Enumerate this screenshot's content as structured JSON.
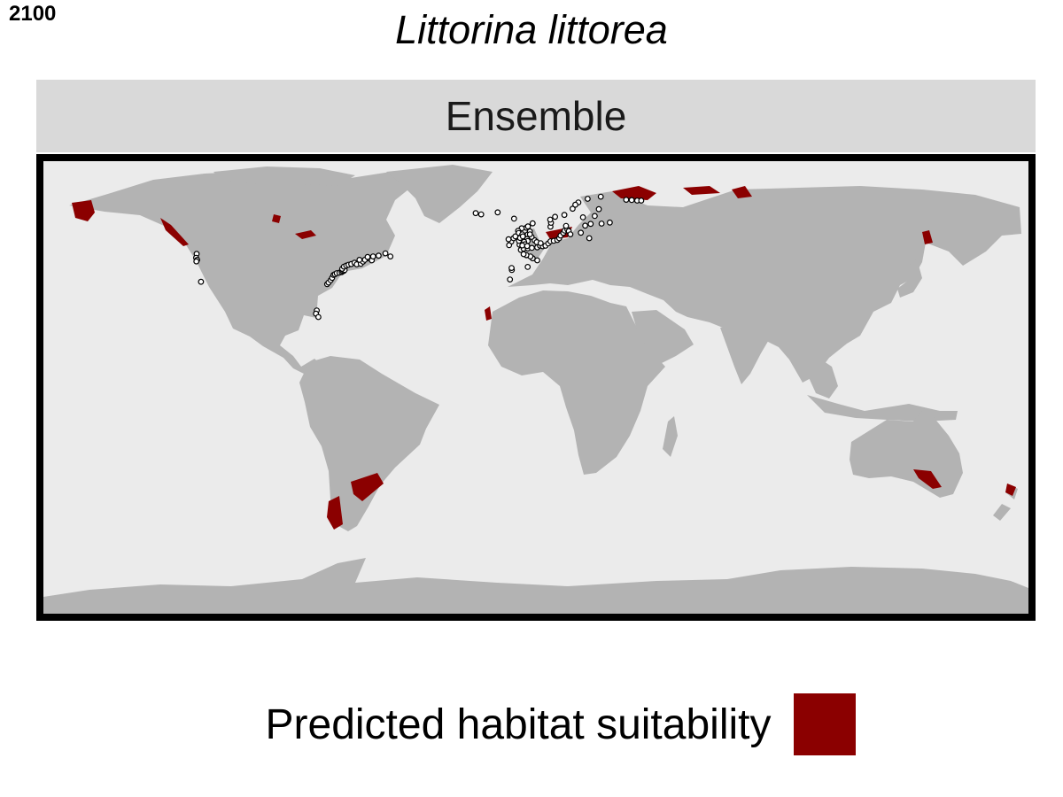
{
  "year_label": "2100",
  "title": "Littorina littorea",
  "panel_label": "Ensemble",
  "legend": {
    "label": "Predicted habitat suitability",
    "color": "#8b0000"
  },
  "colors": {
    "ocean": "#ebebeb",
    "land": "#b3b3b3",
    "suitability": "#8b0000",
    "frame": "#000000",
    "occurrence_fill": "#ffffff",
    "occurrence_stroke": "#000000"
  },
  "occurrences": [
    [
      -124.0,
      48.5
    ],
    [
      -124.2,
      47.0
    ],
    [
      -123.8,
      46.2
    ],
    [
      -124.1,
      45.6
    ],
    [
      -122.4,
      37.8
    ],
    [
      -80.1,
      26.8
    ],
    [
      -80.4,
      25.6
    ],
    [
      -79.5,
      24.3
    ],
    [
      -76.3,
      36.9
    ],
    [
      -75.8,
      37.5
    ],
    [
      -75.0,
      38.4
    ],
    [
      -74.5,
      39.3
    ],
    [
      -74.0,
      40.4
    ],
    [
      -73.5,
      40.7
    ],
    [
      -72.8,
      41.1
    ],
    [
      -71.8,
      41.3
    ],
    [
      -71.0,
      41.5
    ],
    [
      -70.6,
      41.8
    ],
    [
      -70.2,
      42.0
    ],
    [
      -69.9,
      42.3
    ],
    [
      -70.8,
      42.8
    ],
    [
      -70.2,
      43.6
    ],
    [
      -69.3,
      44.0
    ],
    [
      -68.5,
      44.3
    ],
    [
      -67.5,
      44.6
    ],
    [
      -66.3,
      45.1
    ],
    [
      -65.5,
      44.5
    ],
    [
      -64.0,
      44.7
    ],
    [
      -63.2,
      45.5
    ],
    [
      -62.5,
      46.2
    ],
    [
      -61.0,
      46.8
    ],
    [
      -60.0,
      46.0
    ],
    [
      -59.5,
      47.5
    ],
    [
      -57.5,
      47.8
    ],
    [
      -55.0,
      48.7
    ],
    [
      -53.2,
      47.5
    ],
    [
      -61.5,
      47.3
    ],
    [
      -64.5,
      46.2
    ],
    [
      -9.5,
      38.7
    ],
    [
      -8.8,
      42.3
    ],
    [
      -8.9,
      43.1
    ],
    [
      -3.0,
      43.5
    ],
    [
      0.5,
      46.0
    ],
    [
      -1.2,
      46.8
    ],
    [
      -2.0,
      47.5
    ],
    [
      -3.5,
      48.0
    ],
    [
      -4.5,
      48.4
    ],
    [
      -5.5,
      50.0
    ],
    [
      -4.5,
      50.5
    ],
    [
      -3.0,
      50.6
    ],
    [
      -1.5,
      50.8
    ],
    [
      0.5,
      51.0
    ],
    [
      1.5,
      51.6
    ],
    [
      2.5,
      51.4
    ],
    [
      3.5,
      51.6
    ],
    [
      4.5,
      52.5
    ],
    [
      5.3,
      53.3
    ],
    [
      6.5,
      53.5
    ],
    [
      7.8,
      53.8
    ],
    [
      8.5,
      54.5
    ],
    [
      9.0,
      55.5
    ],
    [
      10.0,
      56.5
    ],
    [
      10.5,
      57.4
    ],
    [
      11.5,
      57.8
    ],
    [
      -6.0,
      52.0
    ],
    [
      -9.0,
      53.2
    ],
    [
      -8.2,
      54.5
    ],
    [
      -9.8,
      51.8
    ],
    [
      -6.2,
      53.5
    ],
    [
      -5.8,
      54.6
    ],
    [
      -3.0,
      55.9
    ],
    [
      -2.2,
      57.1
    ],
    [
      -3.5,
      58.5
    ],
    [
      -5.2,
      58.3
    ],
    [
      -6.5,
      57.3
    ],
    [
      -6.3,
      56.5
    ],
    [
      -5.0,
      56.0
    ],
    [
      -4.8,
      55.2
    ],
    [
      -3.2,
      54.2
    ],
    [
      -3.0,
      53.4
    ],
    [
      -4.3,
      53.1
    ],
    [
      -4.0,
      52.2
    ],
    [
      -5.0,
      51.7
    ],
    [
      -3.2,
      51.5
    ],
    [
      -0.5,
      53.7
    ],
    [
      0.3,
      53.0
    ],
    [
      1.7,
      52.6
    ],
    [
      -1.6,
      55.0
    ],
    [
      -2.2,
      56.0
    ],
    [
      -7.5,
      55.2
    ],
    [
      -10.0,
      54.1
    ],
    [
      -1.2,
      60.2
    ],
    [
      -2.9,
      59.0
    ],
    [
      5.3,
      58.9
    ],
    [
      5.5,
      60.4
    ],
    [
      5.2,
      61.6
    ],
    [
      7.0,
      62.7
    ],
    [
      10.4,
      63.4
    ],
    [
      13.4,
      65.8
    ],
    [
      15.5,
      68.2
    ],
    [
      18.9,
      69.6
    ],
    [
      23.7,
      70.4
    ],
    [
      14.4,
      67.3
    ],
    [
      12.0,
      57.2
    ],
    [
      11.0,
      59.2
    ],
    [
      12.6,
      56.0
    ],
    [
      16.4,
      56.6
    ],
    [
      18.0,
      59.3
    ],
    [
      21.5,
      63.0
    ],
    [
      17.2,
      62.5
    ],
    [
      23.0,
      65.6
    ],
    [
      20.0,
      60.0
    ],
    [
      24.0,
      60.1
    ],
    [
      27.0,
      60.5
    ],
    [
      19.5,
      54.5
    ],
    [
      33.0,
      69.2
    ],
    [
      35.0,
      69.1
    ],
    [
      37.0,
      68.9
    ],
    [
      38.5,
      68.9
    ],
    [
      -8.0,
      62.0
    ],
    [
      -14.0,
      64.4
    ],
    [
      -22.0,
      64.1
    ],
    [
      -20.0,
      63.6
    ]
  ]
}
